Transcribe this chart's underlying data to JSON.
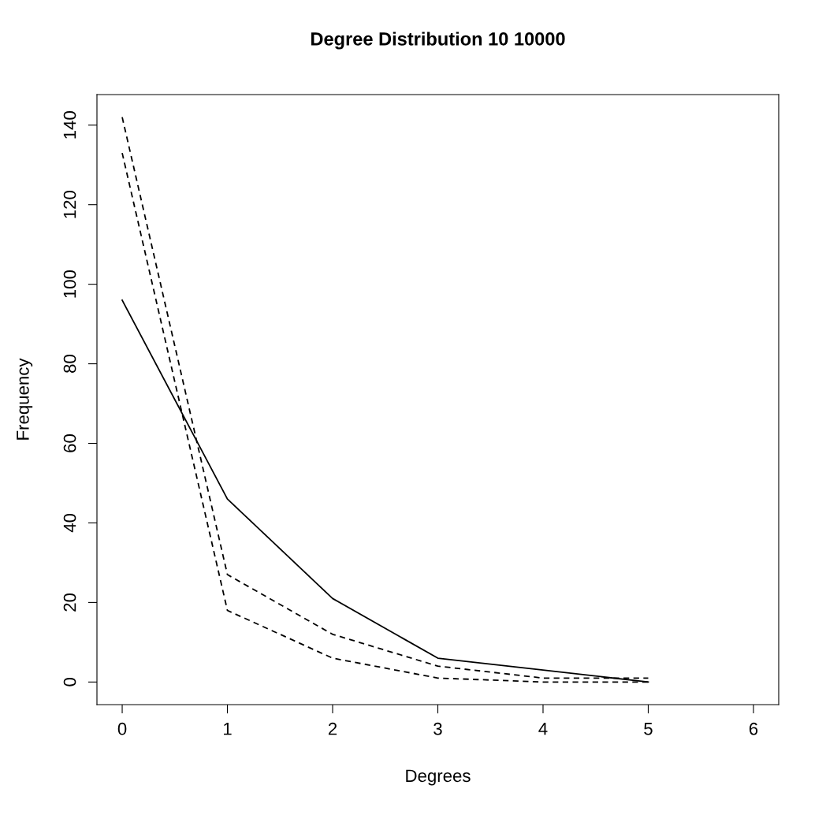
{
  "chart_data": {
    "type": "line",
    "title": "Degree Distribution 10 10000",
    "xlabel": "Degrees",
    "ylabel": "Frequency",
    "x": [
      0,
      1,
      2,
      3,
      4,
      5
    ],
    "series": [
      {
        "color": "#000000",
        "line_style": "solid",
        "values": [
          96,
          46,
          21,
          6,
          3,
          0
        ]
      },
      {
        "color": "#000000",
        "line_style": "dashed",
        "values": [
          142,
          27,
          12,
          4,
          1,
          1
        ]
      },
      {
        "color": "#000000",
        "line_style": "dashed",
        "values": [
          133,
          18,
          6,
          1,
          0,
          0
        ]
      }
    ],
    "xlim": [
      -0.24,
      6.24
    ],
    "ylim": [
      -5.68,
      147.68
    ],
    "xticks": [
      0,
      1,
      2,
      3,
      4,
      5,
      6
    ],
    "yticks": [
      0,
      20,
      40,
      60,
      80,
      100,
      120,
      140
    ],
    "grid": false
  }
}
